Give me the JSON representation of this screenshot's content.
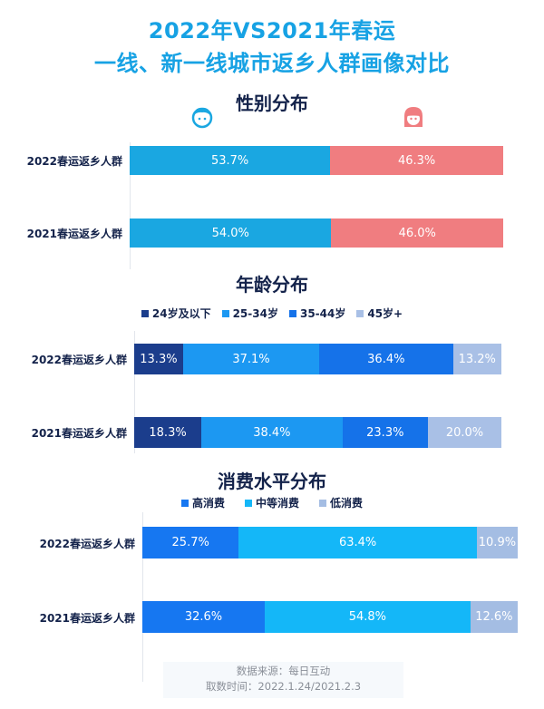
{
  "title": {
    "line1": "2022年VS2021年春运",
    "line2": "一线、新一线城市返乡人群画像对比"
  },
  "footer": {
    "source": "数据来源：每日互动",
    "period": "取数时间：2022.1.24/2021.2.3"
  },
  "chart_data": [
    {
      "type": "bar",
      "stacked": true,
      "orientation": "horizontal",
      "title": "性别分布",
      "legend_icons": [
        "male-face-icon",
        "female-face-icon"
      ],
      "categories": [
        "2022春运返乡人群",
        "2021春运返乡人群"
      ],
      "series": [
        {
          "name": "男",
          "color": "#1aa7e1",
          "values": [
            53.7,
            54.0
          ],
          "labels": [
            "53.7%",
            "54.0%"
          ]
        },
        {
          "name": "女",
          "color": "#f07d80",
          "values": [
            46.3,
            46.0
          ],
          "labels": [
            "46.3%",
            "46.0%"
          ]
        }
      ],
      "xlim": [
        0,
        100
      ]
    },
    {
      "type": "bar",
      "stacked": true,
      "orientation": "horizontal",
      "title": "年龄分布",
      "categories": [
        "2022春运返乡人群",
        "2021春运返乡人群"
      ],
      "series": [
        {
          "name": "24岁及以下",
          "color": "#1b3d8c",
          "values": [
            13.3,
            18.3
          ],
          "labels": [
            "13.3%",
            "18.3%"
          ]
        },
        {
          "name": "25-34岁",
          "color": "#1c98f2",
          "values": [
            37.1,
            38.4
          ],
          "labels": [
            "37.1%",
            "38.4%"
          ]
        },
        {
          "name": "35-44岁",
          "color": "#1572e9",
          "values": [
            36.4,
            23.3
          ],
          "labels": [
            "36.4%",
            "23.3%"
          ]
        },
        {
          "name": "45岁+",
          "color": "#a9c0e6",
          "values": [
            13.2,
            20.0
          ],
          "labels": [
            "13.2%",
            "20.0%"
          ]
        }
      ],
      "xlim": [
        0,
        100
      ]
    },
    {
      "type": "bar",
      "stacked": true,
      "orientation": "horizontal",
      "title": "消费水平分布",
      "categories": [
        "2022春运返乡人群",
        "2021春运返乡人群"
      ],
      "series": [
        {
          "name": "高消费",
          "color": "#1677f1",
          "values": [
            25.7,
            32.6
          ],
          "labels": [
            "25.7%",
            "32.6%"
          ]
        },
        {
          "name": "中等消费",
          "color": "#14b7f8",
          "values": [
            63.4,
            54.8
          ],
          "labels": [
            "63.4%",
            "54.8%"
          ]
        },
        {
          "name": "低消费",
          "color": "#a4bde3",
          "values": [
            10.9,
            12.6
          ],
          "labels": [
            "10.9%",
            "12.6%"
          ]
        }
      ],
      "xlim": [
        0,
        100
      ]
    }
  ]
}
